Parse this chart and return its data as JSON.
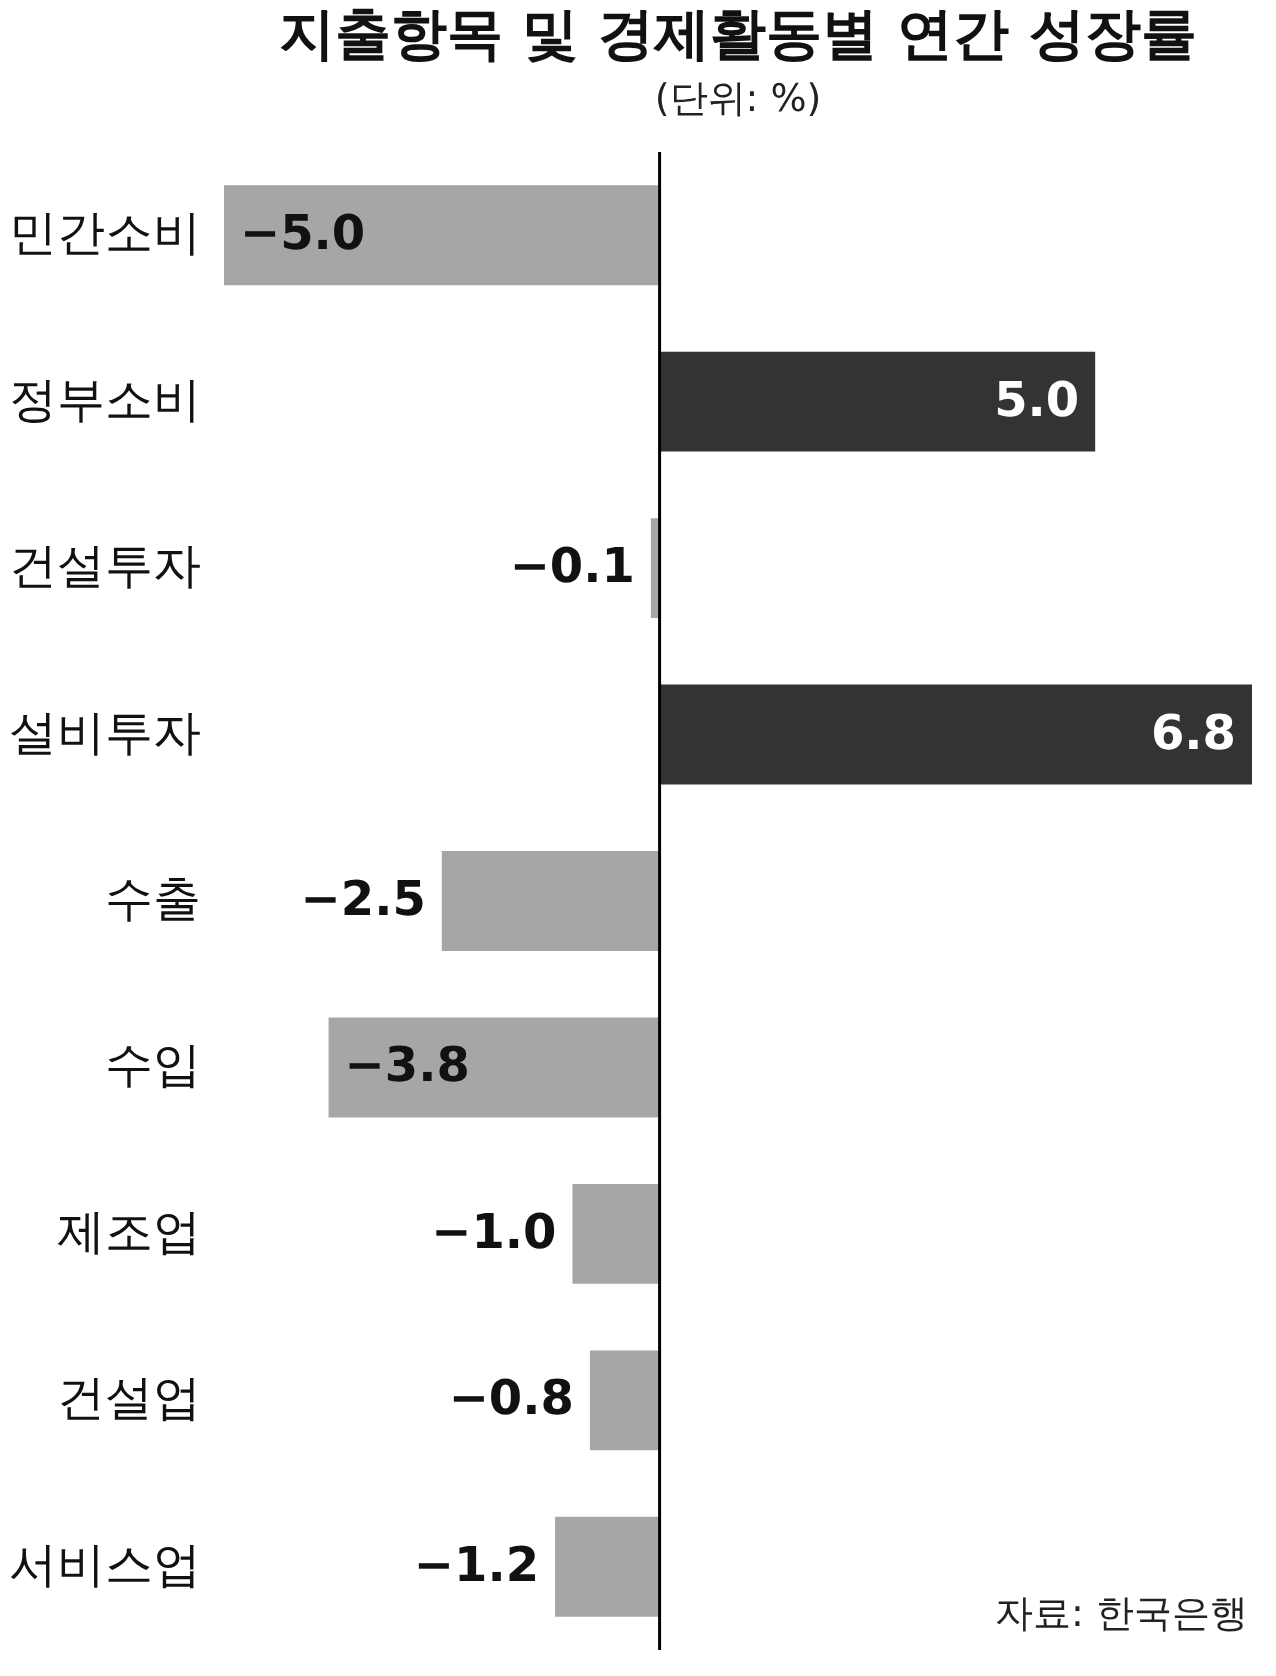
{
  "chart_data": {
    "type": "bar",
    "orientation": "horizontal",
    "title": "지출항목 및 경제활동별 연간 성장률",
    "subtitle": "(단위: %)",
    "categories": [
      "민간소비",
      "정부소비",
      "건설투자",
      "설비투자",
      "수출",
      "수입",
      "제조업",
      "건설업",
      "서비스업"
    ],
    "values": [
      -5.0,
      5.0,
      -0.1,
      6.8,
      -2.5,
      -3.8,
      -1.0,
      -0.8,
      -1.2
    ],
    "value_labels": [
      "−5.0",
      "5.0",
      "−0.1",
      "6.8",
      "−2.5",
      "−3.8",
      "−1.0",
      "−0.8",
      "−1.2"
    ],
    "colors": [
      "#a6a6a6",
      "#333333",
      "#a6a6a6",
      "#333333",
      "#a6a6a6",
      "#a6a6a6",
      "#a6a6a6",
      "#a6a6a6",
      "#a6a6a6"
    ],
    "ref_lines": [
      {
        "axis": "x",
        "value": 0,
        "color": "#000000"
      }
    ],
    "annotations": [
      "자료: 한국은행"
    ]
  }
}
